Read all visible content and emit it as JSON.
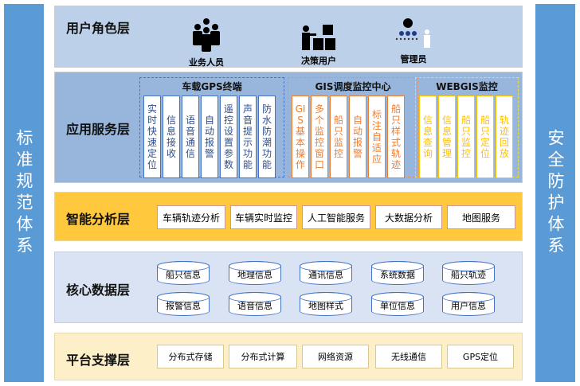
{
  "left_bar": "标准规范体系",
  "right_bar": "安全防护体系",
  "user_layer": {
    "title": "用户角色层",
    "roles": [
      {
        "label": "业务人员",
        "icon": "group-people-icon"
      },
      {
        "label": "决策用户",
        "icon": "decision-user-icon"
      },
      {
        "label": "管理员",
        "icon": "admin-network-icon"
      }
    ]
  },
  "app_layer": {
    "title": "应用服务层",
    "groups": [
      {
        "title": "车载GPS终端",
        "color": "#4472c4",
        "items": [
          "实时快速定位",
          "信息接收",
          "语音通信",
          "自动报警",
          "遥控设置参数",
          "声音提示功能",
          "防水防潮功能"
        ]
      },
      {
        "title": "GIS调度监控中心",
        "color": "#ed7d31",
        "items": [
          "GIS基本操作",
          "多个监控窗口",
          "船只监控",
          "自动报警",
          "标注自适应",
          "船只样式轨迹"
        ]
      },
      {
        "title": "WEBGIS监控",
        "color": "#ffc000",
        "items": [
          "信息查询",
          "信息管理",
          "船只监控",
          "船只定位",
          "轨迹回放"
        ]
      }
    ]
  },
  "smart_layer": {
    "title": "智能分析层",
    "items": [
      "车辆轨迹分析",
      "车辆实时监控",
      "人工智能服务",
      "大数据分析",
      "地图服务"
    ]
  },
  "core_layer": {
    "title": "核心数据层",
    "items": [
      "船只信息",
      "地理信息",
      "通讯信息",
      "系统数据",
      "船只轨迹",
      "报警信息",
      "语音信息",
      "地图样式",
      "单位信息",
      "用户信息"
    ]
  },
  "platform_layer": {
    "title": "平台支撑层",
    "items": [
      "分布式存储",
      "分布式计算",
      "网络资源",
      "无线通信",
      "GPS定位"
    ]
  }
}
